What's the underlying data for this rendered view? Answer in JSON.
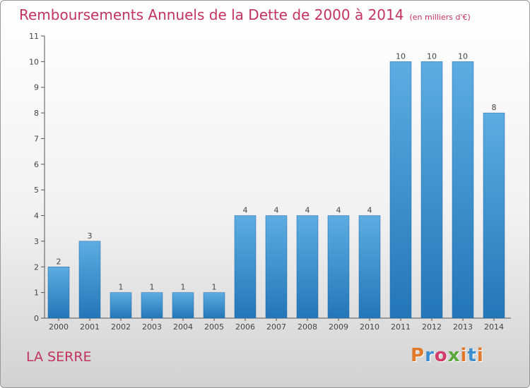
{
  "title": "Remboursements Annuels de la Dette de 2000 à 2014",
  "subtitle": "(en milliers d'€)",
  "commune": "LA SERRE",
  "logo_text": "Proxiti",
  "logo_colors": [
    "#e0792b",
    "#3b8fd0",
    "#d23b6a",
    "#5aa83c",
    "#e0792b",
    "#3b8fd0",
    "#e0792b"
  ],
  "colors": {
    "bar_top": "#5dade2",
    "bar_bottom": "#2376b7",
    "axis": "#555555",
    "title": "#c2335e"
  },
  "chart_data": {
    "type": "bar",
    "categories": [
      "2000",
      "2001",
      "2002",
      "2003",
      "2004",
      "2005",
      "2006",
      "2007",
      "2008",
      "2009",
      "2010",
      "2011",
      "2012",
      "2013",
      "2014"
    ],
    "values": [
      2,
      3,
      1,
      1,
      1,
      1,
      4,
      4,
      4,
      4,
      4,
      10,
      10,
      10,
      8
    ],
    "title": "Remboursements Annuels de la Dette de 2000 à 2014",
    "subtitle": "(en milliers d'€)",
    "ylim": [
      0,
      11
    ],
    "yticks": [
      0,
      1,
      2,
      3,
      4,
      5,
      6,
      7,
      8,
      9,
      10,
      11
    ],
    "grid": false,
    "data_labels": true
  }
}
